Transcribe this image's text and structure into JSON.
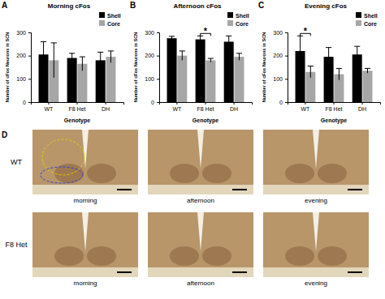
{
  "chart_data": [
    {
      "type": "bar",
      "panel": "A",
      "title": "Morning cFos",
      "x_label": "Genotype",
      "y_label": "Number of cFos Neurons in SCN",
      "categories": [
        "WT",
        "F8 Het",
        "DH"
      ],
      "series": [
        {
          "name": "Shell",
          "color": "#000000",
          "values": [
            205,
            190,
            180
          ],
          "errors": [
            55,
            20,
            35
          ]
        },
        {
          "name": "Core",
          "color": "#a6a6a6",
          "values": [
            180,
            165,
            195
          ],
          "errors": [
            75,
            30,
            25
          ]
        }
      ],
      "ylim": [
        0,
        300
      ],
      "yticks": [
        0,
        100,
        200,
        300
      ],
      "legend": "top-right"
    },
    {
      "type": "bar",
      "panel": "B",
      "title": "Afternoon cFos",
      "x_label": "Genotype",
      "y_label": "Number of cFos Neurons in SCN",
      "categories": [
        "WT",
        "F8 Het",
        "DH"
      ],
      "series": [
        {
          "name": "Shell",
          "color": "#000000",
          "values": [
            275,
            270,
            260
          ],
          "errors": [
            8,
            15,
            25
          ]
        },
        {
          "name": "Core",
          "color": "#a6a6a6",
          "values": [
            200,
            180,
            195
          ],
          "errors": [
            20,
            8,
            15
          ]
        }
      ],
      "ylim": [
        0,
        300
      ],
      "yticks": [
        0,
        100,
        200,
        300
      ],
      "legend": "top-right",
      "annotations": [
        {
          "text": "*",
          "category": "F8 Het"
        }
      ]
    },
    {
      "type": "bar",
      "panel": "C",
      "title": "Evening cFos",
      "x_label": "Genotype",
      "y_label": "Number of cFos Neurons in SCN",
      "categories": [
        "WT",
        "F8 Het",
        "DH"
      ],
      "series": [
        {
          "name": "Shell",
          "color": "#000000",
          "values": [
            220,
            195,
            205
          ],
          "errors": [
            65,
            40,
            35
          ]
        },
        {
          "name": "Core",
          "color": "#a6a6a6",
          "values": [
            130,
            120,
            135
          ],
          "errors": [
            25,
            25,
            10
          ]
        }
      ],
      "ylim": [
        0,
        300
      ],
      "yticks": [
        0,
        100,
        200,
        300
      ],
      "legend": "top-right",
      "annotations": [
        {
          "text": "*",
          "category": "WT"
        }
      ]
    }
  ],
  "panel_d": {
    "panel": "D",
    "rows": [
      {
        "label": "WT",
        "images": [
          "morning",
          "afternoon",
          "evening"
        ]
      },
      {
        "label": "F8 Het",
        "images": [
          "morning",
          "afternoon",
          "evening"
        ]
      }
    ]
  }
}
